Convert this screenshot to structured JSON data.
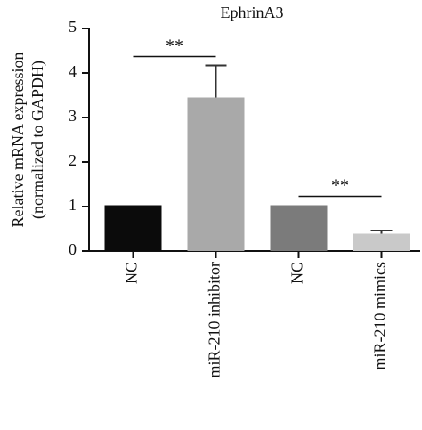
{
  "chart_data": {
    "type": "bar",
    "title": "EphrinA3",
    "y_label": [
      "Relative mRNA expression",
      "(normalized to GAPDH)"
    ],
    "categories": [
      "NC",
      "miR-210 inhibitor",
      "NC",
      "miR-210 mimics"
    ],
    "values": [
      1.03,
      3.45,
      1.03,
      0.39
    ],
    "errors": [
      0,
      0.72,
      0,
      0.07
    ],
    "colors": [
      "#0b0b0b",
      "#a9a9a9",
      "#7b7b7b",
      "#c9c9c9"
    ],
    "annotations": [
      "**",
      "**"
    ],
    "ylim": [
      0,
      5
    ],
    "yticks": [
      0,
      1,
      2,
      3,
      4,
      5
    ]
  }
}
